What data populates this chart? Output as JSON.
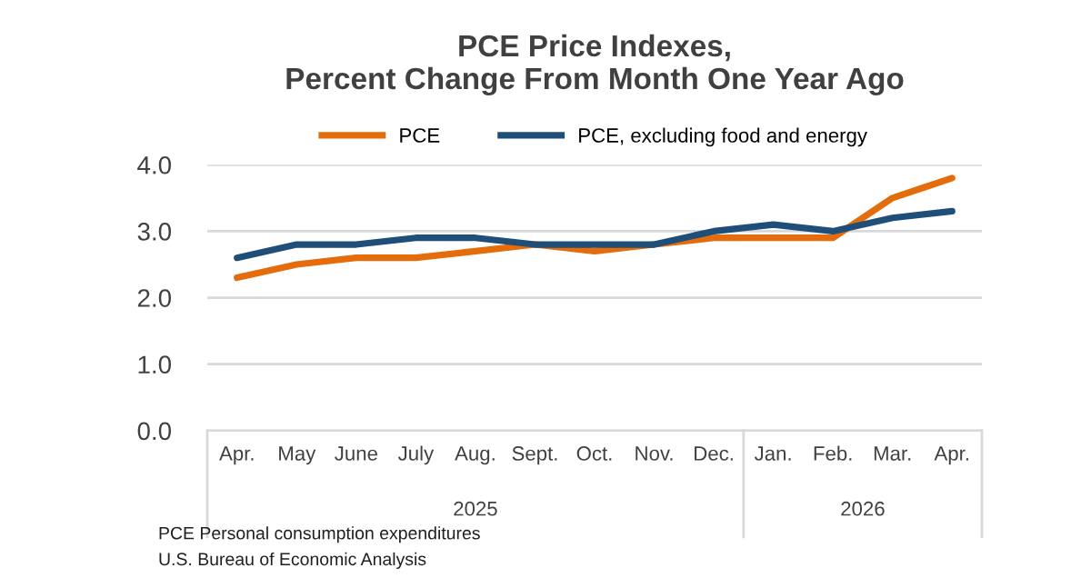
{
  "chart_data": {
    "type": "line",
    "title": "PCE Price Indexes,\nPercent Change From Month One Year Ago",
    "categories": [
      "Apr.",
      "May",
      "June",
      "July",
      "Aug.",
      "Sept.",
      "Oct.",
      "Nov.",
      "Dec.",
      "Jan.",
      "Feb.",
      "Mar.",
      "Apr."
    ],
    "series": [
      {
        "name": "PCE",
        "color": "#e46c0a",
        "values": [
          2.3,
          2.5,
          2.6,
          2.6,
          2.7,
          2.8,
          2.7,
          2.8,
          2.9,
          2.9,
          2.9,
          3.5,
          3.8
        ]
      },
      {
        "name": "PCE, excluding food and energy",
        "color": "#1f4e79",
        "values": [
          2.6,
          2.8,
          2.8,
          2.9,
          2.9,
          2.8,
          2.8,
          2.8,
          3.0,
          3.1,
          3.0,
          3.2,
          3.3
        ]
      }
    ],
    "ylim": [
      0,
      4
    ],
    "yticks": [
      {
        "value": 0,
        "label": "0.0"
      },
      {
        "value": 1,
        "label": "1.0"
      },
      {
        "value": 2,
        "label": "2.0"
      },
      {
        "value": 3,
        "label": "3.0"
      },
      {
        "value": 4,
        "label": "4.0"
      }
    ],
    "grid": "y",
    "legend": "top",
    "annotations": [
      "2025",
      "2026",
      "PCE Personal consumption expenditures",
      "U.S. Bureau of Economic Analysis"
    ]
  }
}
